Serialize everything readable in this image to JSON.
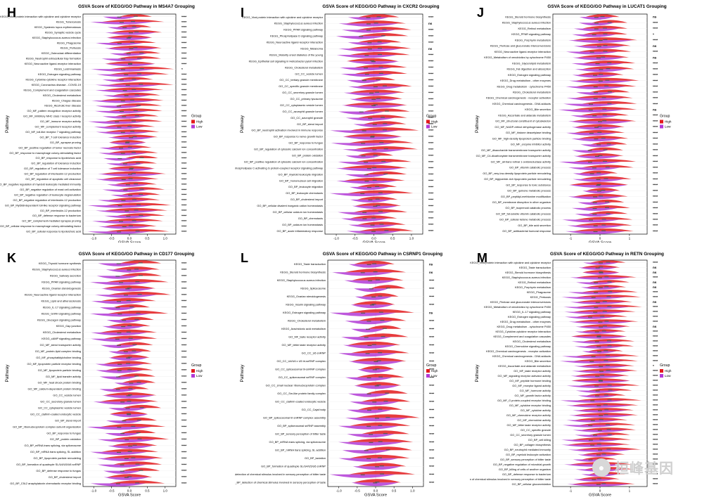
{
  "colors": {
    "high": "#e31a1c",
    "low": "#b23ad6",
    "grid": "#ececec"
  },
  "watermark": {
    "icon": "wechat-icon",
    "text": "桓峰基因"
  },
  "chart_data": [
    {
      "letter": "H",
      "type": "violin",
      "title": "GSVA Score of KEGG/GO Pathway in MS4A7 Grouping",
      "xlabel": "GSVA Score",
      "ylabel": "Pathway",
      "xticks": [
        "-1.0",
        "-0.5",
        "0.0",
        "0.5",
        "1.0"
      ],
      "xlim": [
        -1.3,
        1.3
      ],
      "legend": {
        "title": "Group",
        "items": [
          "High",
          "Low"
        ]
      },
      "pathways": [
        "KEGG_Viral protein interaction with cytokine and cytokine receptor",
        "KEGG_Tuberculosis",
        "KEGG_Systemic lupus erythematosus",
        "KEGG_Synaptic vesicle cycle",
        "KEGG_Staphylococcus aureus infection",
        "KEGG_Phagosome",
        "KEGG_Pertussis",
        "KEGG_Osteoclast differentiation",
        "KEGG_Neutrophil extracellular trap formation",
        "KEGG_Neuroactive ligand-receptor interaction",
        "KEGG_Leishmaniasis",
        "KEGG_Estrogen signaling pathway",
        "KEGG_Cytokine-cytokine receptor interaction",
        "KEGG_Coronavirus disease - COVID-19",
        "KEGG_Complement and coagulation cascades",
        "KEGG_Cholesterol metabolism",
        "KEGG_Chagas disease",
        "KEGG_Alcoholic liver disease",
        "GO_MF_pattern recognition receptor activity",
        "GO_MF_inhibitory MHC class I receptor activity",
        "GO_MF_immune receptor activity",
        "GO_MF_complement receptor activity",
        "GO_MF_toll-like receptor 7 signaling pathway",
        "GO_BP_T cell tolerance induction",
        "GO_BP_synapse pruning",
        "GO_BP_positive regulation of tumor necrosis factor",
        "GO_BP_response to macrophage colony-stimulating factor",
        "GO_BP_response to lipoteichoic acid",
        "GO_BP_regulation of tolerance induction",
        "GO_BP_regulation of T cell tolerance induction",
        "GO_BP_regulation of interleukin-12 production",
        "GO_BP_regulation of apoptotic cell clearance",
        "GO_BP_negative regulation of myeloid leukocyte mediated immunity",
        "GO_BP_negative regulation of mast cell activation",
        "GO_BP_negative regulation of leukocyte degranulation",
        "GO_BP_negative regulation of interleukin-12 production",
        "GO_BP_MyD88-dependent toll-like receptor signaling pathway",
        "GO_BP_interleukin-12 production",
        "GO_BP_defense response to bacterium",
        "GO_BP_complement-mediated synapse pruning",
        "GO_BP_cellular response to macrophage colony-stimulating factor",
        "GO_BP_cellular response to lipoteichoic acid"
      ],
      "significance": [
        "****",
        "****",
        "****",
        "****",
        "****",
        "****",
        "****",
        "****",
        "****",
        "****",
        "*",
        "****",
        "****",
        "****",
        "****",
        "****",
        "****",
        "****",
        "****",
        "****",
        "****",
        "****",
        "****",
        "****",
        "****",
        "****",
        "****",
        "****",
        "****",
        "****",
        "****",
        "****",
        "****",
        "****",
        "****",
        "****",
        "****",
        "****",
        "****",
        "****",
        "****",
        "****"
      ]
    },
    {
      "letter": "I",
      "type": "violin",
      "title": "GSVA Score of KEGG/GO Pathway in CXCR2 Grouping",
      "xlabel": "GSVA Score",
      "ylabel": "Pathway",
      "xticks": [
        "-1.0",
        "-0.5",
        "0.0",
        "0.5",
        "1.0"
      ],
      "xlim": [
        -1.3,
        1.3
      ],
      "legend": {
        "title": "Group",
        "items": [
          "High",
          "Low"
        ]
      },
      "pathways": [
        "KEGG_Viral protein interaction with cytokine and cytokine receptor",
        "KEGG_Staphylococcus aureus infection",
        "KEGG_PPAR signaling pathway",
        "KEGG_Phospholipase D signaling pathway",
        "KEGG_Neuroactive ligand-receptor interaction",
        "KEGG_Melanoma",
        "KEGG_Maturity onset diabetes of the young",
        "KEGG_Epithelial cell signaling in Helicobacter pylori infection",
        "KEGG_Cholesterol metabolism",
        "GO_CC_vesicle lumen",
        "GO_CC_tertiary granule membrane",
        "GO_CC_specific granule membrane",
        "GO_CC_secretory granule lumen",
        "GO_CC_primary lysosome",
        "GO_CC_cytoplasmic vesicle lumen",
        "GO_CC_azurophil granule lumen",
        "GO_CC_azurophil granule",
        "GO_BP_sterol import",
        "GO_BP_neutrophil activation involved in immune response",
        "GO_BP_response to nerve growth factor",
        "GO_BP_response to fungus",
        "GO_BP_regulation of cytosolic calcium ion concentration",
        "GO_BP_protein oxidation",
        "GO_BP_positive regulation of cytosolic calcium ion concentration",
        "GO_BP_phospholipase C-activating G protein-coupled receptor signaling pathway",
        "GO_BP_myeloid leukocyte migration",
        "GO_BP_mononuclear cell migration",
        "GO_BP_leukocyte migration",
        "GO_BP_leukocyte chemotaxis",
        "GO_BP_cholesterol import",
        "GO_BP_cellular divalent inorganic cation homeostasis",
        "GO_BP_cellular calcium ion homeostasis",
        "GO_BP_chemotaxis",
        "GO_BP_calcium ion homeostasis",
        "GO_BP_acute inflammatory response"
      ],
      "significance": [
        "****",
        "ns",
        "****",
        "****",
        "****",
        "ns",
        "****",
        "****",
        "****",
        "****",
        "****",
        "****",
        "****",
        "****",
        "****",
        "****",
        "****",
        "****",
        "****",
        "****",
        "****",
        "****",
        "****",
        "****",
        "****",
        "****",
        "****",
        "****",
        "****",
        "****",
        "****",
        "****",
        "****",
        "****",
        "****"
      ]
    },
    {
      "letter": "J",
      "type": "violin",
      "title": "GSVA Score of KEGG/GO Pathway in LUCAT1 Grouping",
      "xlabel": "GSVA Score",
      "ylabel": "Pathway",
      "xticks": [
        "-1",
        "0",
        "1"
      ],
      "xlim": [
        -1.6,
        1.6
      ],
      "legend": {
        "title": "Group",
        "items": [
          "High",
          "Low"
        ]
      },
      "pathways": [
        "KEGG_Steroid hormone biosynthesis",
        "KEGG_Staphylococcus aureus infection",
        "KEGG_Retinol metabolism",
        "KEGG_PPAR signaling pathway",
        "KEGG_Porphyrin metabolism",
        "KEGG_Pentose and glucuronate interconversions",
        "KEGG_Neuroactive ligand-receptor interaction",
        "KEGG_Metabolism of xenobiotics by cytochrome P450",
        "KEGG_Glycerolipid metabolism",
        "KEGG_Fat digestion and absorption",
        "KEGG_Estrogen signaling pathway",
        "KEGG_Drug metabolism - other enzymes",
        "KEGG_Drug metabolism - cytochrome P450",
        "KEGG_Cholesterol metabolism",
        "KEGG_Chemical carcinogenesis - receptor activation",
        "KEGG_Chemical carcinogenesis - DNA adducts",
        "KEGG_Bile secretion",
        "KEGG_Ascorbate and aldarate metabolism",
        "GO_MF_structural constituent of cytoskeleton",
        "GO_MF_NADP-retinol dehydrogenase activity",
        "GO_MF_histone deacetylase binding",
        "GO_MF_high-density lipoprotein particle binding",
        "GO_MF_enzyme inhibitor activity",
        "GO_MF_disaccharide transmembrane transporter activity",
        "GO_MF_C4-dicarboxylate transmembrane transporter activity",
        "GO_MF_all-trans retinal 1-oxidoreductase activity",
        "GO_BP_vitamin catabolic process",
        "GO_BP_very-low-density lipoprotein particle remodeling",
        "GO_BP_triglyceride-rich lipoprotein particle remodeling",
        "GO_BP_response to toxic substance",
        "GO_BP_quinone metabolic process",
        "GO_BP_peptidyl-methionine modification",
        "GO_BP_membrane disruption in other organism",
        "GO_BP_isoprenoid catabolic process",
        "GO_BP_fat-soluble vitamin catabolic process",
        "GO_BP_cellular ketone metabolic process",
        "GO_BP_bile acid secretion",
        "GO_BP_antibacterial humoral response"
      ],
      "significance": [
        "ns",
        "****",
        "****",
        "*",
        "****",
        "ns",
        "****",
        "ns",
        "****",
        "****",
        "****",
        "****",
        "****",
        "****",
        "****",
        "****",
        "ns",
        "****",
        "****",
        "****",
        "****",
        "****",
        "****",
        "****",
        "****",
        "****",
        "****",
        "****",
        "****",
        "****",
        "****",
        "****",
        "****",
        "****",
        "****",
        "****",
        "****",
        "****"
      ]
    },
    {
      "letter": "K",
      "type": "violin",
      "title": "GSVA Score of KEGG/GO Pathway in CD177 Grouping",
      "xlabel": "GSVA Score",
      "ylabel": "Pathway",
      "xticks": [
        "-1.0",
        "-0.5",
        "0.0",
        "0.5",
        "1.0"
      ],
      "xlim": [
        -1.3,
        1.3
      ],
      "legend": {
        "title": "Group",
        "items": [
          "High",
          "Low"
        ]
      },
      "pathways": [
        "KEGG_Thyroid hormone synthesis",
        "KEGG_Staphylococcus aureus infection",
        "KEGG_Salivary secretion",
        "KEGG_PPAR signaling pathway",
        "KEGG_Ovarian steroidogenesis",
        "KEGG_Neuroactive ligand-receptor interaction",
        "KEGG_Lipid and atherosclerosis",
        "KEGG_IL-17 signaling pathway",
        "KEGG_GnRH signaling pathway",
        "KEGG_Glucagon signaling pathway",
        "KEGG_Gap junction",
        "KEGG_Cholesterol metabolism",
        "KEGG_cAMP signaling pathway",
        "GO_MF_sterol transporter activity",
        "GO_MF_protein-lipid complex binding",
        "GO_MF_phosphatidylcholine binding",
        "GO_MF_lipoprotein particle receptor binding",
        "GO_MF_lipoprotein particle binding",
        "GO_MF_lipid transfer activity",
        "GO_MF_heat shock protein binding",
        "GO_MF_calcium-dependent protein binding",
        "GO_CC_vesicle lumen",
        "GO_CC_secretory granule lumen",
        "GO_CC_cytoplasmic vesicle lumen",
        "GO_CC_clathrin-coated endocytic vesicle",
        "GO_BP_sterol import",
        "GO_BP_ribonucleoprotein complex subunit organization",
        "GO_BP_response to fungus",
        "GO_BP_protein oxidation",
        "GO_BP_mRNA trans splicing, via spliceosome",
        "GO_BP_mRNA trans splicing, SL addition",
        "GO_BP_lipoprotein particle remodeling",
        "GO_BP_formation of quadruple SL/U4/U5/U6 snRNP",
        "GO_BP_defense response to fungus",
        "GO_BP_cholesterol import",
        "GO_BP_C5L2 anaphylatoxin chemotactic receptor binding"
      ],
      "significance": [
        "****",
        "****",
        "****",
        "****",
        "****",
        "****",
        "****",
        "****",
        "****",
        "****",
        "****",
        "****",
        "****",
        "****",
        "****",
        "****",
        "****",
        "****",
        "****",
        "****",
        "****",
        "****",
        "****",
        "****",
        "****",
        "****",
        "****",
        "****",
        "****",
        "****",
        "****",
        "****",
        "****",
        "****",
        "****",
        "****"
      ]
    },
    {
      "letter": "L",
      "type": "violin",
      "title": "GSVA Score of KEGG/GO Pathway in CSRNP1 Grouping",
      "xlabel": "GSVA Score",
      "ylabel": "Pathway",
      "xticks": [
        "-1.0",
        "-0.5",
        "0.0",
        "0.5",
        "1.0"
      ],
      "xlim": [
        -1.3,
        1.3
      ],
      "legend": {
        "title": "Group",
        "items": [
          "High",
          "Low"
        ]
      },
      "pathways": [
        "KEGG_Taste transduction",
        "KEGG_Steroid hormone biosynthesis",
        "KEGG_Staphylococcus aureus infection",
        "KEGG_Spliceosome",
        "KEGG_Ovarian steroidogenesis",
        "KEGG_Insulin signaling pathway",
        "KEGG_Estrogen signaling pathway",
        "KEGG_Cholesterol metabolism",
        "KEGG_Arachidonic acid metabolism",
        "GO_MF_taste receptor activity",
        "GO_MF_bitter taste receptor activity",
        "GO_CC_U6 snRNP",
        "GO_CC_U4/U6 x U5 tri-snRNP complex",
        "GO_CC_spliceosomal tri-snRNP complex",
        "GO_CC_spliceosomal snRNP complex",
        "GO_CC_small nuclear ribonucleoprotein complex",
        "GO_CC_Sm-like protein family complex",
        "GO_CC_clathrin-coated endocytic vesicle",
        "GO_CC_Cajal body",
        "GO_BP_spliceosomal tri-snRNP complex assembly",
        "GO_BP_spliceosomal snRNP assembly",
        "GO_BP_sensory perception of bitter taste",
        "GO_BP_mRNA trans splicing, via spliceosome",
        "GO_BP_mRNA trans splicing, SL addition",
        "GO_BP_lactation",
        "GO_BP_formation of quadruple SL/U4/U5/U6 snRNP",
        "GO_BP_detection of chemical stimulus involved in sensory perception of bitter taste",
        "GO_BP_detection of chemical stimulus involved in sensory perception of taste"
      ],
      "significance": [
        "ns",
        "ns",
        "****",
        "****",
        "****",
        "****",
        "ns",
        "****",
        "****",
        "****",
        "****",
        "****",
        "****",
        "****",
        "****",
        "****",
        "****",
        "****",
        "****",
        "****",
        "****",
        "****",
        "****",
        "****",
        "****",
        "****",
        "****",
        "****"
      ]
    },
    {
      "letter": "M",
      "type": "violin",
      "title": "GSVA Score of KEGG/GO Pathway in RETN Grouping",
      "xlabel": "GSVA Score",
      "ylabel": "Pathway",
      "xticks": [
        "-1",
        "0",
        "1"
      ],
      "xlim": [
        -1.6,
        1.6
      ],
      "legend": {
        "title": "Group",
        "items": [
          "High",
          "Low"
        ]
      },
      "pathways": [
        "KEGG_Viral protein interaction with cytokine and cytokine receptor",
        "KEGG_Taste transduction",
        "KEGG_Steroid hormone biosynthesis",
        "KEGG_Staphylococcus aureus infection",
        "KEGG_Retinol metabolism",
        "KEGG_Porphyrin metabolism",
        "KEGG_Phagosome",
        "KEGG_Pertussis",
        "KEGG_Pentose and glucuronate interconversions",
        "KEGG_Metabolism of xenobiotics by cytochrome P450",
        "KEGG_IL-17 signaling pathway",
        "KEGG_Estrogen signaling pathway",
        "KEGG_Drug metabolism - other enzymes",
        "KEGG_Drug metabolism - cytochrome P450",
        "KEGG_Cytokine-cytokine receptor interaction",
        "KEGG_Complement and coagulation cascades",
        "KEGG_Cholesterol metabolism",
        "KEGG_Chemokine signaling pathway",
        "KEGG_Chemical carcinogenesis - receptor activation",
        "KEGG_Chemical carcinogenesis - DNA adducts",
        "KEGG_Bile secretion",
        "KEGG_Ascorbate and aldarate metabolism",
        "GO_MF_taste receptor activity",
        "GO_MF_signaling receptor activator activity",
        "GO_MF_peptide hormone binding",
        "GO_MF_receptor ligand activity",
        "GO_MF_hormone activity",
        "GO_MF_growth factor activity",
        "GO_MF_G protein-coupled receptor binding",
        "GO_MF_cytokine receptor binding",
        "GO_MF_cytokine activity",
        "GO_MF_chemokine receptor activity",
        "GO_MF_chemokine activity",
        "GO_MF_bitter taste receptor activity",
        "GO_CC_specific granule",
        "GO_CC_secretory granule lumen",
        "GO_BP_cell killing",
        "GO_BP_collagen biosynthesis",
        "GO_BP_neutrophil mediated immunity",
        "GO_BP_myeloid leukocyte activation",
        "GO_BP_sensory perception of bitter taste",
        "GO_BP_negative regulation of microbial growth",
        "GO_BP_killing of cells of another organism",
        "GO_BP_defense response to bacterium",
        "GO_BP_detection of chemical stimulus involved in sensory perception of bitter taste",
        "GO_BP_cellular glucuronidation"
      ],
      "significance": [
        "****",
        "ns",
        "ns",
        "****",
        "ns",
        "ns",
        "****",
        "****",
        "ns",
        "****",
        "****",
        "****",
        "****",
        "ns",
        "****",
        "****",
        "****",
        "****",
        "****",
        "****",
        "****",
        "*",
        "****",
        "****",
        "****",
        "****",
        "****",
        "****",
        "****",
        "****",
        "****",
        "****",
        "****",
        "****",
        "****",
        "****",
        "****",
        "****",
        "****",
        "****",
        "****",
        "****",
        "****",
        "****",
        "****",
        "****"
      ]
    }
  ]
}
